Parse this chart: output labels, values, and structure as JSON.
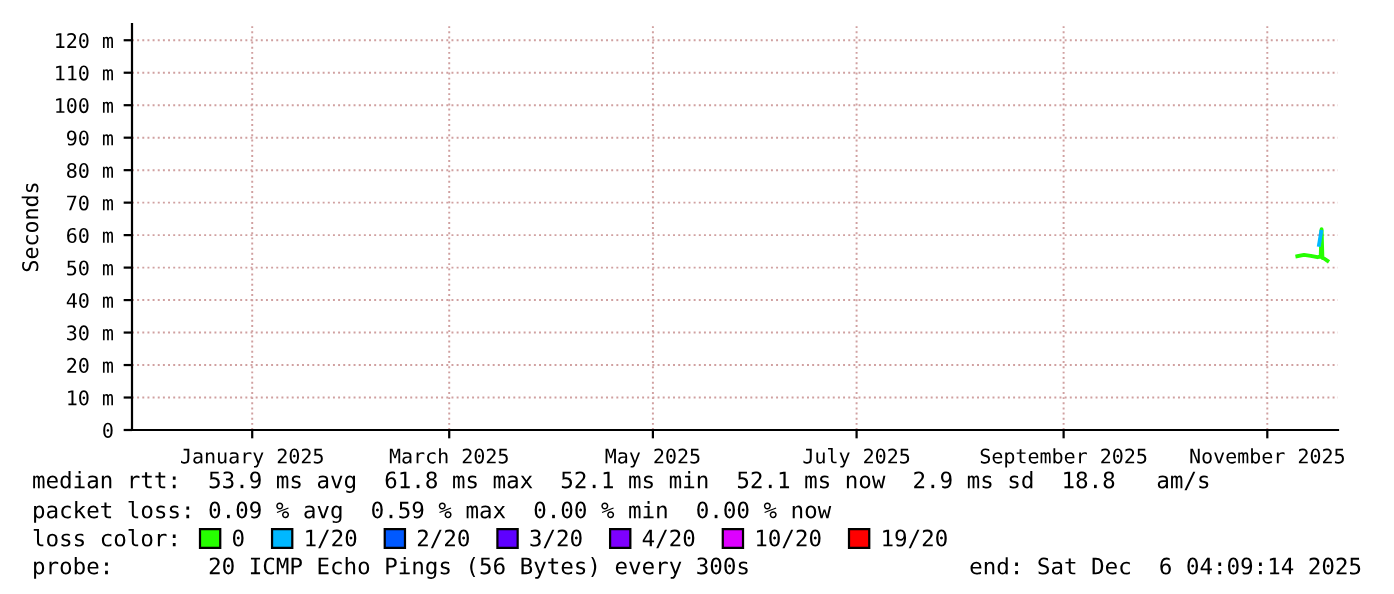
{
  "chart_data": {
    "type": "line",
    "ylabel": "Seconds",
    "legend_title": "loss color:",
    "xlim": [
      "2024-12-10",
      "2025-12-06T04:09"
    ],
    "ylim": [
      0,
      125
    ],
    "yticks": [
      0,
      {
        "value": 10,
        "label": "10 m"
      },
      {
        "value": 20,
        "label": "20 m"
      },
      {
        "value": 30,
        "label": "30 m"
      },
      {
        "value": 40,
        "label": "40 m"
      },
      {
        "value": 50,
        "label": "50 m"
      },
      {
        "value": 60,
        "label": "60 m"
      },
      {
        "value": 70,
        "label": "70 m"
      },
      {
        "value": 80,
        "label": "80 m"
      },
      {
        "value": 90,
        "label": "90 m"
      },
      {
        "value": 100,
        "label": "100 m"
      },
      {
        "value": 110,
        "label": "110 m"
      },
      {
        "value": 120,
        "label": "120 m"
      }
    ],
    "xticks": [
      {
        "value": "2025-01-15",
        "label": "January 2025"
      },
      {
        "value": "2025-03-15",
        "label": "March 2025"
      },
      {
        "value": "2025-05-15",
        "label": "May 2025"
      },
      {
        "value": "2025-07-15",
        "label": "July 2025"
      },
      {
        "value": "2025-09-15",
        "label": "September 2025"
      },
      {
        "value": "2025-11-15",
        "label": "November 2025"
      }
    ],
    "grid": true,
    "legend": "bottom",
    "line_style": "solid",
    "marker": "none",
    "series": [
      {
        "name": "0",
        "color": "#26ff00",
        "x": [
          "2025-11-24",
          "2025-11-26",
          "2025-11-28",
          "2025-11-30",
          "2025-12-01",
          "2025-12-01T06:00",
          "2025-12-01T12:00",
          "2025-12-02",
          "2025-12-03"
        ],
        "values": [
          53.5,
          53.9,
          53.6,
          53.2,
          53.4,
          61.8,
          53.0,
          52.8,
          52.1
        ]
      },
      {
        "name": "1/20",
        "color": "#00b8ff",
        "x": [
          "2025-11-30T12:00",
          "2025-12-01T03:00"
        ],
        "values": [
          57.0,
          61.0
        ]
      },
      {
        "name": "2/20",
        "color": "#0059ff"
      },
      {
        "name": "3/20",
        "color": "#5e00ff"
      },
      {
        "name": "4/20",
        "color": "#7e00ff"
      },
      {
        "name": "10/20",
        "color": "#dd00ff"
      },
      {
        "name": "19/20",
        "color": "#ff0000"
      }
    ],
    "annotations": [
      "median rtt:  53.9 ms avg  61.8 ms max  52.1 ms min  52.1 ms now  2.9 ms sd  18.8   am/s",
      "packet loss: 0.09 % avg  0.59 % max  0.00 % min  0.00 % now",
      "probe:       20 ICMP Echo Pings (56 Bytes) every 300s",
      "end: Sat Dec  6 04:09:14 2025"
    ]
  }
}
